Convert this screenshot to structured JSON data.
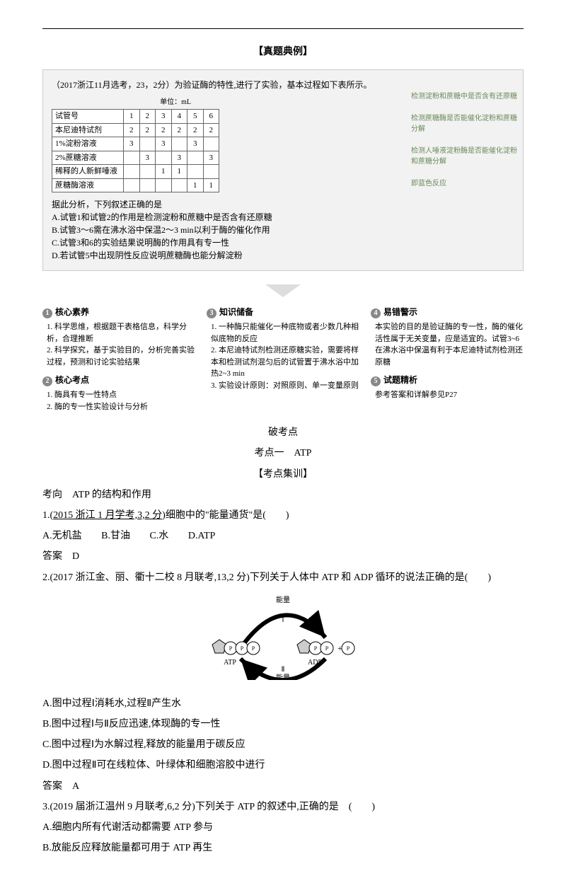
{
  "titles": {
    "exam_examples": "【真题典例】",
    "break_points": "破考点",
    "point1": "考点一　ATP",
    "training": "【考点集训】"
  },
  "exam_box": {
    "header": "（2017浙江11月选考，23，2分）为验证酶的特性,进行了实验，基本过程如下表所示。",
    "unit": "单位：mL",
    "row_headers": [
      "试管号",
      "本尼迪特试剂",
      "1%淀粉溶液",
      "2%蔗糖溶液",
      "稀释的人新鲜唾液",
      "蔗糖酶溶液"
    ],
    "cols": [
      "1",
      "2",
      "3",
      "4",
      "5",
      "6"
    ],
    "cells": [
      [
        "2",
        "2",
        "2",
        "2",
        "2",
        "2"
      ],
      [
        "3",
        "",
        "3",
        "",
        "3",
        ""
      ],
      [
        "",
        "3",
        "",
        "3",
        "",
        "3"
      ],
      [
        "",
        "",
        "1",
        "1",
        "",
        ""
      ],
      [
        "",
        "",
        "",
        "",
        "1",
        "1"
      ]
    ],
    "prompt": "据此分析，下列叙述正确的是",
    "opts": [
      "A.试管1和试管2的作用是检测淀粉和蔗糖中是否含有还原糖",
      "B.试管3～6需在沸水浴中保温2～3 min以利于酶的催化作用",
      "C.试管3和6的实验结果说明酶的作用具有专一性",
      "D.若试管5中出现阴性反应说明蔗糖酶也能分解淀粉"
    ],
    "annotations": [
      "检测淀粉和蔗糖中是否含有还原糖",
      "检测蔗糖酶是否能催化淀粉和蔗糖分解",
      "检测人唾液淀粉酶是否能催化淀粉和蔗糖分解",
      "即蓝色反应"
    ]
  },
  "columns": {
    "c1_title": "核心素养",
    "c1_body": "1. 科学思维，根据题干表格信息，科学分析，合理推断\n2. 科学探究，基于实验目的，分析完善实验过程，预测和讨论实验结果",
    "c2_title": "核心考点",
    "c2_body": "1. 酶具有专一性特点\n2. 酶的专一性实验设计与分析",
    "c3_title": "知识储备",
    "c3_body": "1. 一种酶只能催化一种底物或者少数几种相似底物的反应\n2. 本尼迪特试剂检测还原糖实验，需要将样本和检测试剂混匀后的试管置于沸水浴中加热2~3 min\n3. 实验设计原则：对照原则、单一变量原则",
    "c4_title": "易错警示",
    "c4_body": "本实验的目的是验证酶的专一性，酶的催化活性属于无关变量，应是适宜的。试管3~6在沸水浴中保温有利于本尼迪特试剂检测还原糖",
    "c5_title": "试题精析",
    "c5_body": "参考答案和详解参见P27"
  },
  "q_direction": "考向　ATP 的结构和作用",
  "q1": {
    "stem_prefix": "1.(",
    "stem_link": "2015 浙江 1 月学考,3,2 分",
    "stem_suffix": ")细胞中的\"能量通货\"是(　　)",
    "optA": "A.无机盐",
    "optB": "B.甘油",
    "optC": "C.水",
    "optD": "D.ATP",
    "answer": "答案　D"
  },
  "q2": {
    "stem": "2.(2017 浙江金、丽、衢十二校 8 月联考,13,2 分)下列关于人体中 ATP 和 ADP 循环的说法正确的是(　　)",
    "labels": {
      "top": "能量",
      "bottom": "能量",
      "atp": "ATP",
      "adp": "ADP",
      "p": "P",
      "one": "Ⅰ",
      "two": "Ⅱ"
    },
    "optA": "A.图中过程Ⅰ消耗水,过程Ⅱ产生水",
    "optB": "B.图中过程Ⅰ与Ⅱ反应迅速,体现酶的专一性",
    "optC": "C.图中过程Ⅰ为水解过程,释放的能量用于碳反应",
    "optD": "D.图中过程Ⅱ可在线粒体、叶绿体和细胞溶胶中进行",
    "answer": "答案　A"
  },
  "q3": {
    "stem": "3.(2019 届浙江温州 9 月联考,6,2 分)下列关于 ATP 的叙述中,正确的是　(　　)",
    "optA": "A.细胞内所有代谢活动都需要 ATP 参与",
    "optB": "B.放能反应释放能量都可用于 ATP 再生"
  }
}
